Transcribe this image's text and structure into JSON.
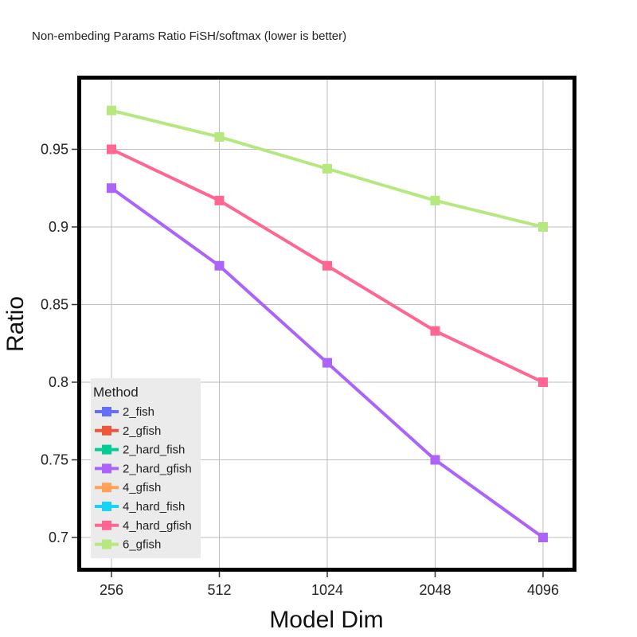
{
  "chart_data": {
    "type": "line",
    "title": "Non-embeding Params Ratio FiSH/softmax (lower is better)",
    "xlabel": "Model Dim",
    "ylabel": "Ratio",
    "categories": [
      "256",
      "512",
      "1024",
      "2048",
      "4096"
    ],
    "ylim": [
      0.685,
      0.995
    ],
    "yticks": [
      0.7,
      0.75,
      0.8,
      0.85,
      0.9,
      0.95
    ],
    "ytick_labels": [
      "0.7",
      "0.75",
      "0.8",
      "0.85",
      "0.9",
      "0.95"
    ],
    "grid": true,
    "legend": {
      "title": "Method",
      "placement": "bottom-left",
      "entries": [
        {
          "name": "2_fish",
          "color": "#636efa"
        },
        {
          "name": "2_gfish",
          "color": "#ef553b"
        },
        {
          "name": "2_hard_fish",
          "color": "#00cc96"
        },
        {
          "name": "2_hard_gfish",
          "color": "#ab63fa"
        },
        {
          "name": "4_gfish",
          "color": "#ffa15a"
        },
        {
          "name": "4_hard_fish",
          "color": "#19d3f3"
        },
        {
          "name": "4_hard_gfish",
          "color": "#ff6692"
        },
        {
          "name": "6_gfish",
          "color": "#b6e880"
        }
      ]
    },
    "series": [
      {
        "name": "6_gfish",
        "color": "#b6e880",
        "values": [
          0.975,
          0.958,
          0.9375,
          0.917,
          0.9
        ]
      },
      {
        "name": "4_hard_gfish",
        "color": "#ff6692",
        "values": [
          0.95,
          0.917,
          0.875,
          0.833,
          0.8
        ]
      },
      {
        "name": "2_hard_gfish",
        "color": "#ab63fa",
        "values": [
          0.925,
          0.875,
          0.8125,
          0.75,
          0.7
        ]
      }
    ]
  }
}
